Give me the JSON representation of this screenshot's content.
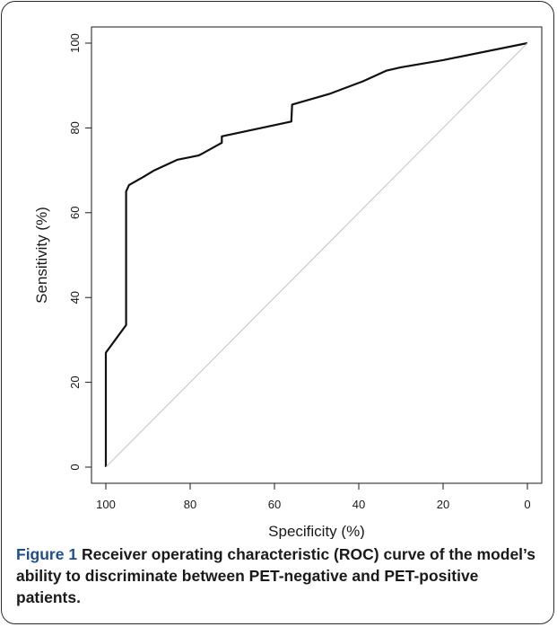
{
  "figure": {
    "caption_label": "Figure 1",
    "caption_text": "Receiver operating characteristic (ROC) curve of the model’s ability to discriminate between PET-negative and PET-positive patients."
  },
  "chart_data": {
    "type": "line",
    "title": "",
    "xlabel": "Specificity (%)",
    "ylabel": "Sensitivity (%)",
    "xlim": [
      100,
      0
    ],
    "ylim": [
      0,
      100
    ],
    "x_reversed": true,
    "x_ticks": [
      100,
      80,
      60,
      40,
      20,
      0
    ],
    "y_ticks": [
      0,
      20,
      40,
      60,
      80,
      100
    ],
    "grid": false,
    "series": [
      {
        "role": "roc-curve",
        "color": "#111111",
        "x": [
          100,
          100,
          95.2,
          95.2,
          94.5,
          91,
          88.5,
          83,
          78,
          77,
          72.5,
          72.5,
          56,
          55.8,
          47,
          39,
          33.5,
          30,
          20,
          0
        ],
        "y": [
          0,
          27,
          33.5,
          65,
          66.5,
          68.5,
          70,
          72.5,
          73.5,
          74,
          76.5,
          78,
          81.5,
          85.5,
          88,
          91,
          93.5,
          94.3,
          96,
          100
        ]
      },
      {
        "role": "reference-diagonal",
        "color": "#c2c2c2",
        "x": [
          100,
          0
        ],
        "y": [
          0,
          100
        ]
      }
    ]
  }
}
